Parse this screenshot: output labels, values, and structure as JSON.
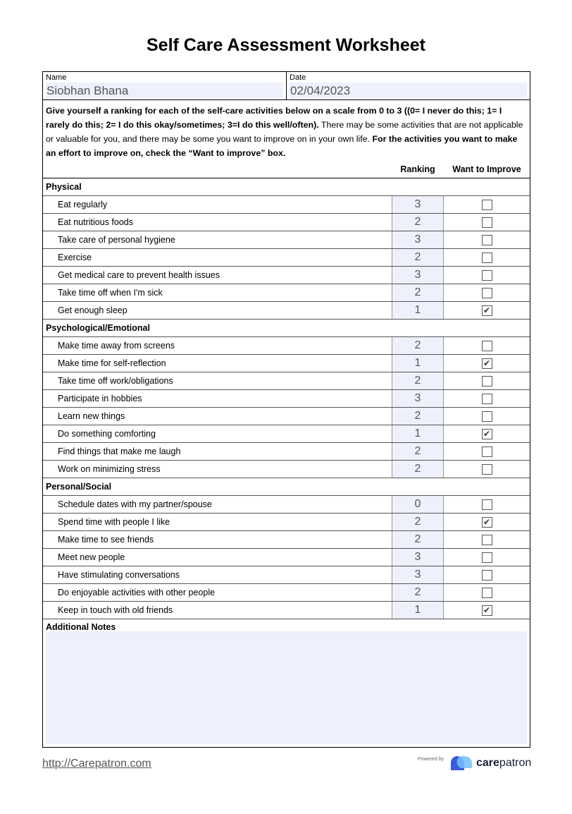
{
  "title": "Self Care Assessment Worksheet",
  "name_label": "Name",
  "name_value": "Siobhan Bhana",
  "date_label": "Date",
  "date_value": "02/04/2023",
  "instructions": {
    "bold1": "Give yourself a ranking for each of the self-care activities below on a scale from 0 to 3 ((0= I never do this; 1= I rarely do this; 2= I do this okay/sometimes; 3=I do this well/often).",
    "normal": " There may be some activities that are not applicable or valuable for you, and there may be some you want to improve on in your own life. ",
    "bold2": "For the activities you want to make an effort to improve on, check the “Want to improve” box."
  },
  "columns": {
    "ranking": "Ranking",
    "improve": "Want to Improve"
  },
  "sections": [
    {
      "title": "Physical",
      "items": [
        {
          "label": "Eat regularly",
          "ranking": "3",
          "improve": false
        },
        {
          "label": "Eat nutritious foods",
          "ranking": "2",
          "improve": false
        },
        {
          "label": "Take care of personal hygiene",
          "ranking": "3",
          "improve": false
        },
        {
          "label": "Exercise",
          "ranking": "2",
          "improve": false
        },
        {
          "label": "Get medical care to prevent health issues",
          "ranking": "3",
          "improve": false
        },
        {
          "label": "Take time off when I'm sick",
          "ranking": "2",
          "improve": false
        },
        {
          "label": "Get enough sleep",
          "ranking": "1",
          "improve": true
        }
      ]
    },
    {
      "title": "Psychological/Emotional",
      "items": [
        {
          "label": "Make time away from screens",
          "ranking": "2",
          "improve": false
        },
        {
          "label": "Make time for self-reflection",
          "ranking": "1",
          "improve": true
        },
        {
          "label": "Take time off work/obligations",
          "ranking": "2",
          "improve": false
        },
        {
          "label": "Participate in hobbies",
          "ranking": "3",
          "improve": false
        },
        {
          "label": "Learn new things",
          "ranking": "2",
          "improve": false
        },
        {
          "label": "Do something comforting",
          "ranking": "1",
          "improve": true
        },
        {
          "label": "Find things that make me laugh",
          "ranking": "2",
          "improve": false
        },
        {
          "label": "Work on minimizing stress",
          "ranking": "2",
          "improve": false
        }
      ]
    },
    {
      "title": "Personal/Social",
      "items": [
        {
          "label": "Schedule dates with my partner/spouse",
          "ranking": "0",
          "improve": false
        },
        {
          "label": "Spend time with people I like",
          "ranking": "2",
          "improve": true
        },
        {
          "label": "Make time to see friends",
          "ranking": "2",
          "improve": false
        },
        {
          "label": "Meet new people",
          "ranking": "3",
          "improve": false
        },
        {
          "label": "Have stimulating conversations",
          "ranking": "3",
          "improve": false
        },
        {
          "label": "Do enjoyable activities with other people",
          "ranking": "2",
          "improve": false
        },
        {
          "label": "Keep in touch with old friends",
          "ranking": "1",
          "improve": true
        }
      ]
    }
  ],
  "notes_label": "Additional Notes",
  "notes_value": "",
  "footer": {
    "link": "http://Carepatron.com",
    "powered": "Powered by",
    "brand_bold": "care",
    "brand_rest": "patron"
  }
}
